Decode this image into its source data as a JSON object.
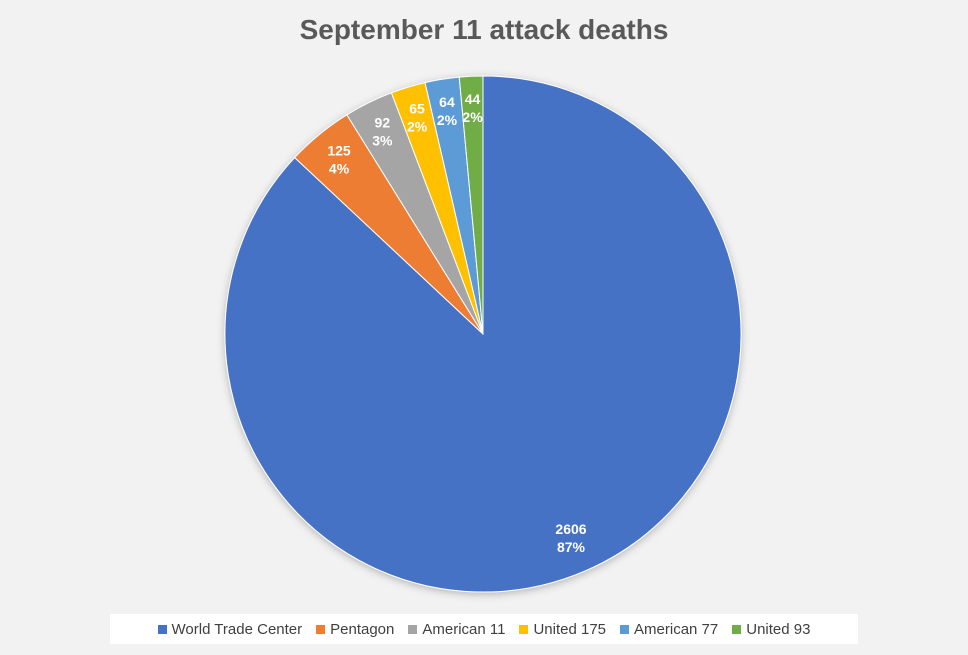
{
  "chart_data": {
    "type": "pie",
    "title": "September 11 attack deaths",
    "categories": [
      "World Trade Center",
      "Pentagon",
      "American 11",
      "United 175",
      "American 77",
      "United 93"
    ],
    "values": [
      2606,
      125,
      92,
      65,
      64,
      44
    ],
    "percent_labels": [
      "87%",
      "4%",
      "3%",
      "2%",
      "2%",
      "2%"
    ],
    "colors": [
      "#4472c4",
      "#ed7d31",
      "#a5a5a5",
      "#ffc000",
      "#5b9bd5",
      "#70ad47"
    ],
    "legend_position": "bottom",
    "start_angle_deg": 0,
    "direction": "clockwise"
  }
}
